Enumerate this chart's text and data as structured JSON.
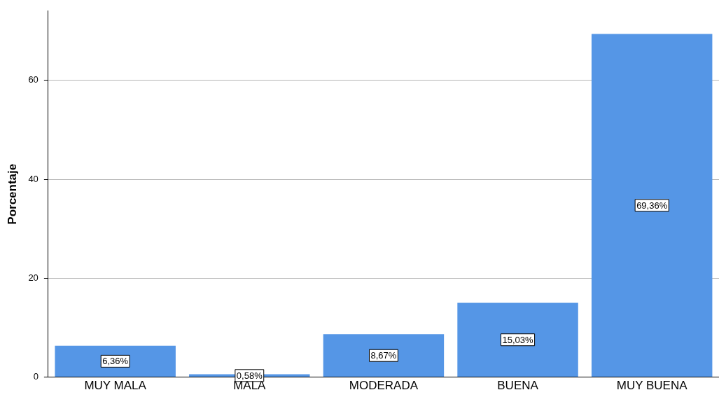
{
  "chart_data": {
    "type": "bar",
    "ylabel": "Porcentaje",
    "categories": [
      "MUY MALA",
      "MALA",
      "MODERADA",
      "BUENA",
      "MUY BUENA"
    ],
    "values": [
      6.36,
      0.58,
      8.67,
      15.03,
      69.36
    ],
    "value_labels": [
      "6,36%",
      "0,58%",
      "8,67%",
      "15,03%",
      "69,36%"
    ],
    "color": "#5596e6",
    "ylim": [
      0,
      74
    ],
    "yticks": [
      0,
      20,
      40,
      60
    ],
    "grid": "y",
    "legend": false
  }
}
